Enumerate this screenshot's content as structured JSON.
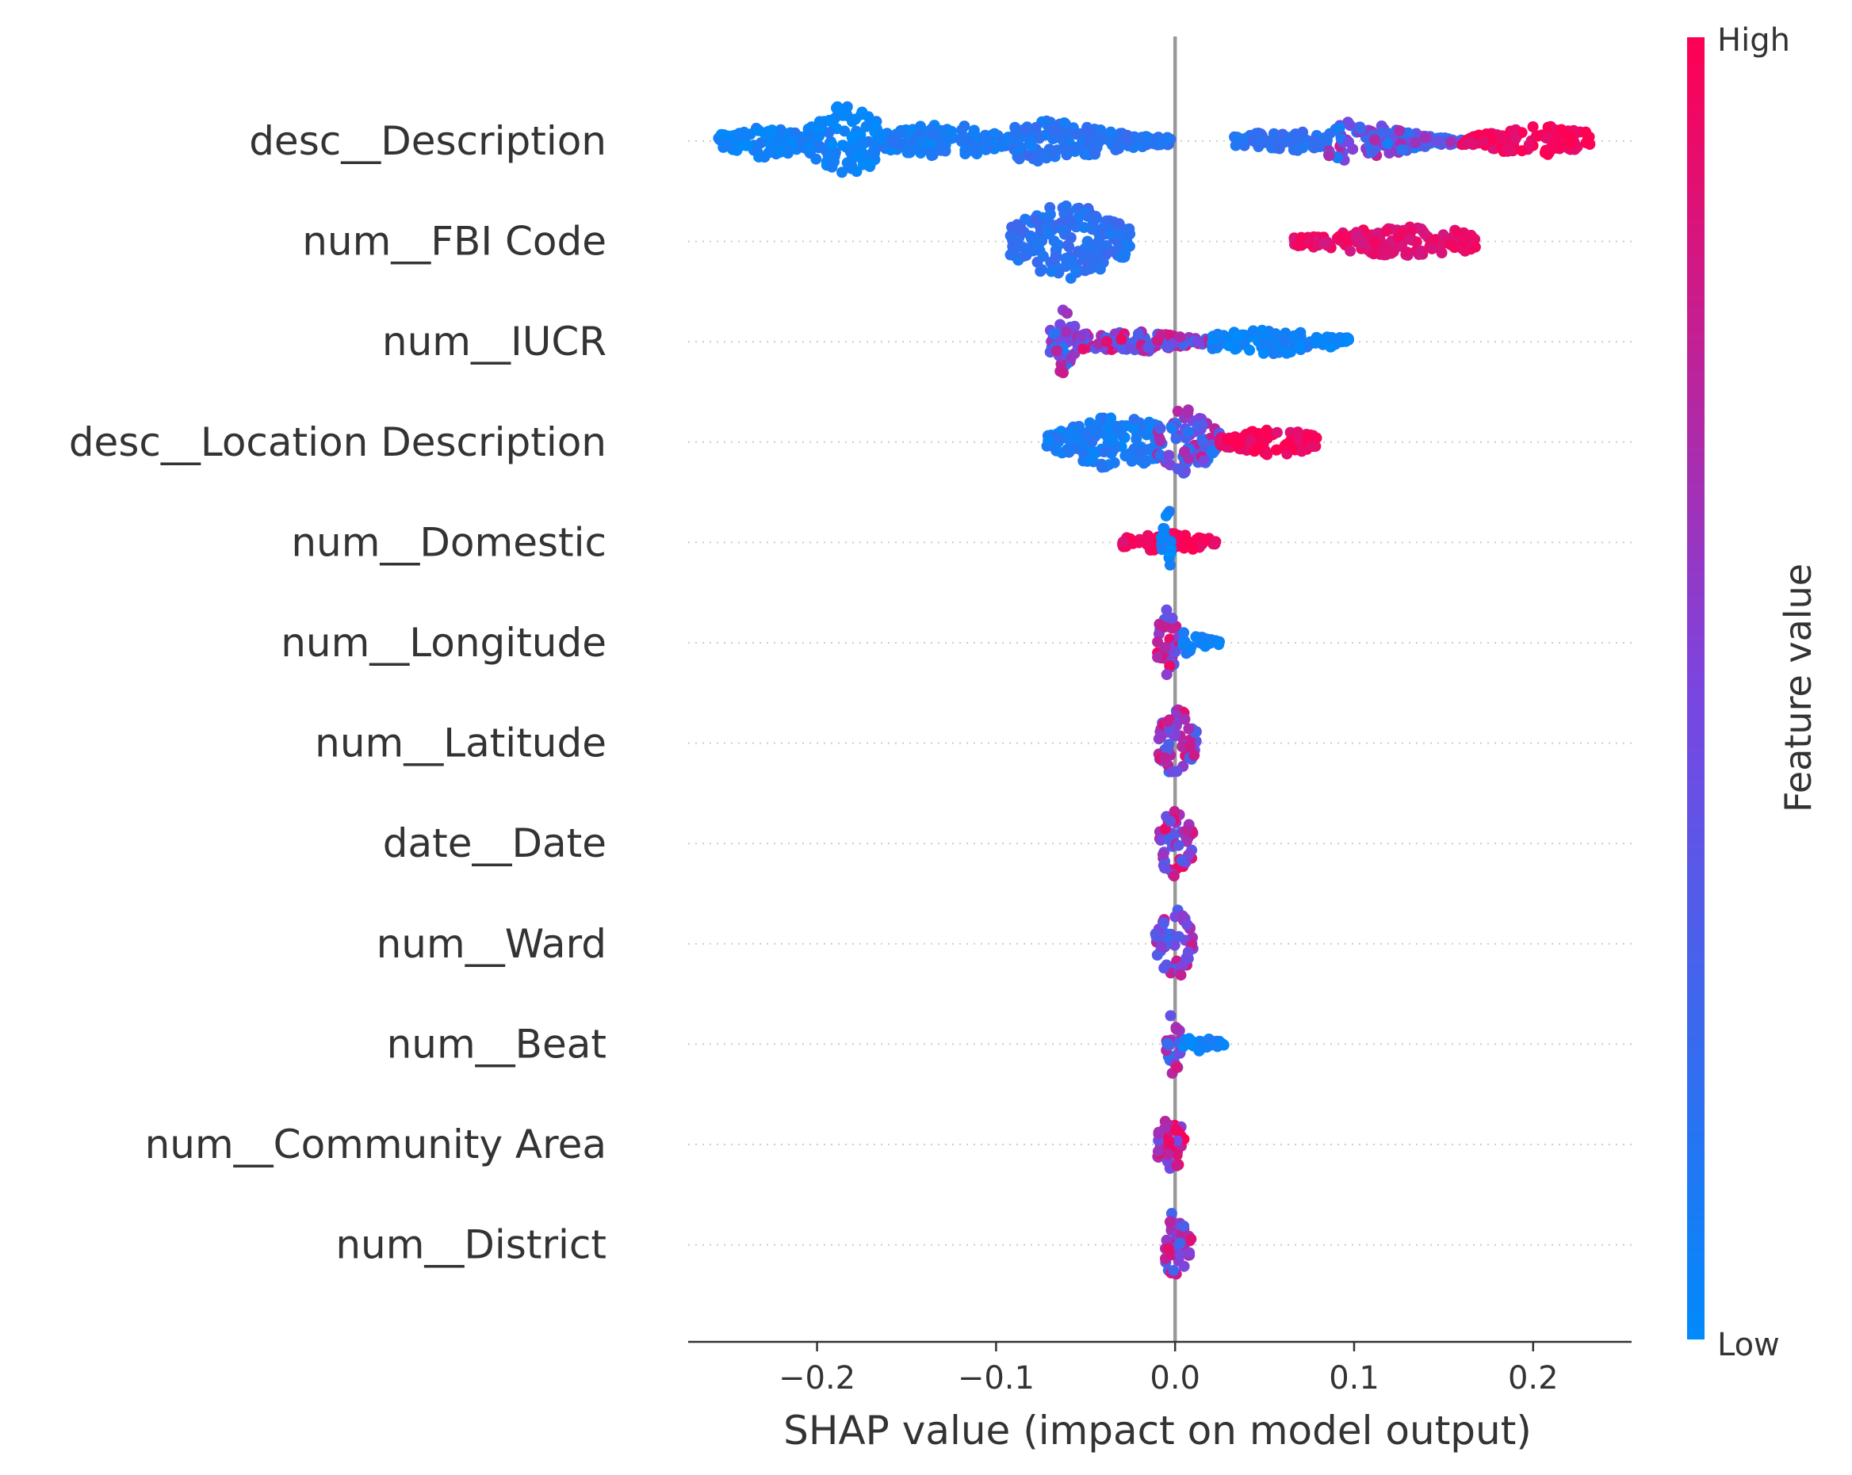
{
  "chart_data": {
    "type": "scatter",
    "subtype": "shap-beeswarm-summary",
    "title": "",
    "xlabel": "SHAP value (impact on model output)",
    "ylabel": "",
    "xlim": [
      -0.272,
      0.255
    ],
    "xticks": [
      -0.2,
      -0.1,
      0.0,
      0.1,
      0.2
    ],
    "xtick_labels": [
      "−0.2",
      "−0.1",
      "0.0",
      "0.1",
      "0.2"
    ],
    "grid": false,
    "zero_line": true,
    "features": [
      {
        "name": "desc__Description",
        "clusters": [
          {
            "min": -0.255,
            "max": -0.205,
            "center": -0.23,
            "spread": 0.45,
            "color": 0.05
          },
          {
            "min": -0.205,
            "max": -0.165,
            "center": -0.183,
            "spread": 1.0,
            "color": 0.05
          },
          {
            "min": -0.165,
            "max": -0.09,
            "center": -0.13,
            "spread": 0.45,
            "color": 0.1
          },
          {
            "min": -0.09,
            "max": -0.002,
            "center": -0.073,
            "spread": 0.55,
            "color": 0.15
          },
          {
            "min": 0.033,
            "max": 0.085,
            "center": 0.06,
            "spread": 0.3,
            "color": 0.18
          },
          {
            "min": 0.085,
            "max": 0.16,
            "center": 0.095,
            "spread": 0.55,
            "color": 0.4
          },
          {
            "min": 0.16,
            "max": 0.232,
            "center": 0.205,
            "spread": 0.4,
            "color": 0.95
          }
        ]
      },
      {
        "name": "num__FBI Code",
        "clusters": [
          {
            "min": -0.092,
            "max": -0.025,
            "center": -0.06,
            "spread": 1.0,
            "color": 0.18
          },
          {
            "min": 0.066,
            "max": 0.168,
            "center": 0.13,
            "spread": 0.4,
            "color": 0.9
          }
        ]
      },
      {
        "name": "num__IUCR",
        "clusters": [
          {
            "min": -0.07,
            "max": -0.055,
            "center": -0.062,
            "spread": 0.95,
            "color": 0.45
          },
          {
            "min": -0.055,
            "max": 0.02,
            "center": -0.03,
            "spread": 0.3,
            "color": 0.6
          },
          {
            "min": 0.02,
            "max": 0.097,
            "center": 0.052,
            "spread": 0.35,
            "color": 0.05
          }
        ]
      },
      {
        "name": "desc__Location Description",
        "clusters": [
          {
            "min": -0.072,
            "max": -0.01,
            "center": -0.032,
            "spread": 0.75,
            "color": 0.1
          },
          {
            "min": -0.01,
            "max": 0.025,
            "center": 0.005,
            "spread": 0.9,
            "color": 0.45
          },
          {
            "min": 0.025,
            "max": 0.079,
            "center": 0.055,
            "spread": 0.35,
            "color": 0.95
          }
        ]
      },
      {
        "name": "num__Domestic",
        "clusters": [
          {
            "min": -0.03,
            "max": 0.023,
            "center": -0.005,
            "spread": 0.25,
            "color": 0.95
          },
          {
            "min": -0.008,
            "max": -0.002,
            "center": -0.004,
            "spread": 0.95,
            "color": 0.05
          }
        ]
      },
      {
        "name": "num__Longitude",
        "clusters": [
          {
            "min": -0.01,
            "max": 0.003,
            "center": -0.004,
            "spread": 0.95,
            "color": 0.6
          },
          {
            "min": 0.003,
            "max": 0.025,
            "center": 0.008,
            "spread": 0.3,
            "color": 0.1
          }
        ]
      },
      {
        "name": "num__Latitude",
        "clusters": [
          {
            "min": -0.01,
            "max": 0.012,
            "center": 0.001,
            "spread": 0.95,
            "color": 0.55
          }
        ]
      },
      {
        "name": "date__Date",
        "clusters": [
          {
            "min": -0.009,
            "max": 0.01,
            "center": 0.0,
            "spread": 0.95,
            "color": 0.65
          }
        ]
      },
      {
        "name": "num__Ward",
        "clusters": [
          {
            "min": -0.011,
            "max": 0.01,
            "center": 0.0,
            "spread": 0.95,
            "color": 0.55
          }
        ]
      },
      {
        "name": "num__Beat",
        "clusters": [
          {
            "min": -0.005,
            "max": 0.003,
            "center": -0.001,
            "spread": 0.95,
            "color": 0.5
          },
          {
            "min": 0.003,
            "max": 0.028,
            "center": 0.012,
            "spread": 0.2,
            "color": 0.05
          }
        ]
      },
      {
        "name": "num__Community Area",
        "clusters": [
          {
            "min": -0.01,
            "max": 0.006,
            "center": -0.001,
            "spread": 0.95,
            "color": 0.75
          }
        ]
      },
      {
        "name": "num__District",
        "clusters": [
          {
            "min": -0.006,
            "max": 0.009,
            "center": 0.0,
            "spread": 0.95,
            "color": 0.6
          }
        ]
      }
    ],
    "colorbar": {
      "label": "Feature value",
      "high_label": "High",
      "low_label": "Low",
      "colors": [
        "#008afb",
        "#7b45e0",
        "#ff0052"
      ]
    }
  }
}
